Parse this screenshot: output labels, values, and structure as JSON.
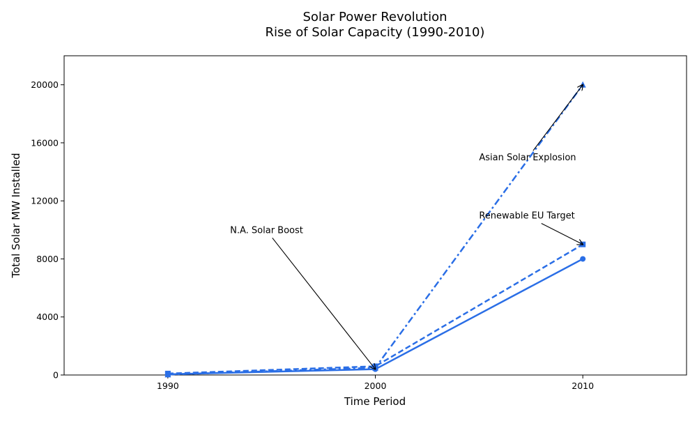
{
  "chart_data": {
    "type": "line",
    "title_line1": "Solar Power Revolution",
    "title_line2": "Rise of Solar Capacity (1990-2010)",
    "xlabel": "Time Period",
    "ylabel": "Total Solar MW Installed",
    "x": [
      1990,
      2000,
      2010
    ],
    "xlim": [
      1985,
      2015
    ],
    "ylim": [
      0,
      22000
    ],
    "x_ticks": [
      "1990",
      "2000",
      "2010"
    ],
    "y_ticks": [
      0,
      4000,
      8000,
      12000,
      16000,
      20000
    ],
    "grid": false,
    "color": "#2a6ee6",
    "series": [
      {
        "style": "solid",
        "marker": "circle",
        "values": [
          50,
          400,
          8000
        ]
      },
      {
        "style": "dashed",
        "marker": "square",
        "values": [
          100,
          600,
          9000
        ]
      },
      {
        "style": "dashdot",
        "marker": "triangle",
        "values": [
          30,
          500,
          20000
        ]
      }
    ],
    "annotations": [
      {
        "text": "N.A. Solar Boost",
        "text_x": 1993,
        "text_y": 10000,
        "point_x": 2000,
        "point_y": 400
      },
      {
        "text": "Renewable EU Target",
        "text_x": 2005,
        "text_y": 11000,
        "point_x": 2010,
        "point_y": 9000
      },
      {
        "text": "Asian Solar Explosion",
        "text_x": 2005,
        "text_y": 15000,
        "point_x": 2010,
        "point_y": 20000
      }
    ]
  }
}
